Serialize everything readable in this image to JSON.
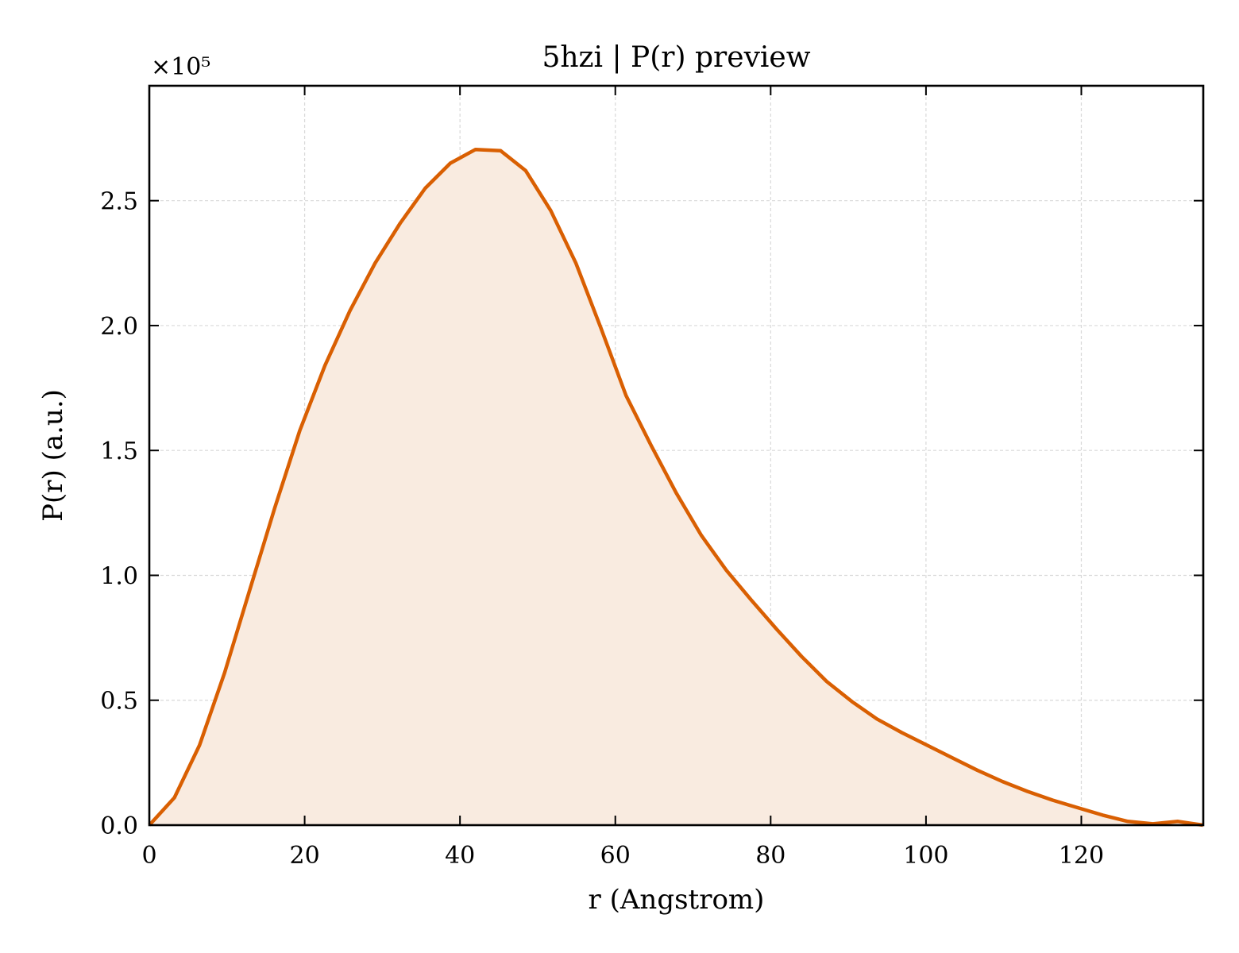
{
  "chart_data": {
    "type": "area",
    "title": "5hzi | P(r) preview",
    "xlabel": "r (Angstrom)",
    "ylabel": "P(r) (a.u.)",
    "y_scale_label": "×10⁵",
    "y_scale_factor": 100000,
    "xlim": [
      0,
      135.7
    ],
    "ylim": [
      0,
      296000
    ],
    "grid": true,
    "legend": "none",
    "colors": {
      "line": "#d95f02",
      "fill": "#f9ebe0",
      "grid": "#d9d9d9",
      "axes": "#000000"
    },
    "x_ticks": [
      {
        "value": 0,
        "label": "0"
      },
      {
        "value": 20,
        "label": "20"
      },
      {
        "value": 40,
        "label": "40"
      },
      {
        "value": 60,
        "label": "60"
      },
      {
        "value": 80,
        "label": "80"
      },
      {
        "value": 100,
        "label": "100"
      },
      {
        "value": 120,
        "label": "120"
      }
    ],
    "y_ticks": [
      {
        "value": 0,
        "label": "0.0"
      },
      {
        "value": 50000,
        "label": "0.5"
      },
      {
        "value": 100000,
        "label": "1.0"
      },
      {
        "value": 150000,
        "label": "1.5"
      },
      {
        "value": 200000,
        "label": "2.0"
      },
      {
        "value": 250000,
        "label": "2.5"
      }
    ],
    "series": [
      {
        "x": [
          0,
          3.23,
          6.46,
          9.69,
          12.92,
          16.15,
          19.38,
          22.61,
          25.84,
          29.07,
          32.3,
          35.53,
          38.76,
          42.0,
          45.23,
          48.46,
          51.69,
          54.92,
          58.15,
          61.38,
          64.61,
          67.84,
          71.07,
          74.3,
          77.53,
          80.76,
          83.99,
          87.22,
          90.45,
          93.68,
          96.91,
          100.14,
          103.37,
          106.6,
          109.83,
          113.06,
          116.29,
          119.52,
          122.75,
          125.98,
          129.21,
          132.44,
          135.67
        ],
        "y": [
          0,
          11000,
          32000,
          61000,
          94000,
          127000,
          158000,
          184000,
          206000,
          225000,
          241000,
          255000,
          265000,
          270500,
          270000,
          262000,
          246000,
          225000,
          199000,
          172000,
          152000,
          133000,
          116000,
          102000,
          90000,
          78500,
          67500,
          57500,
          49500,
          42500,
          37000,
          32000,
          27000,
          22000,
          17500,
          13500,
          10000,
          7000,
          4000,
          1500,
          500,
          1500,
          0
        ]
      }
    ]
  }
}
